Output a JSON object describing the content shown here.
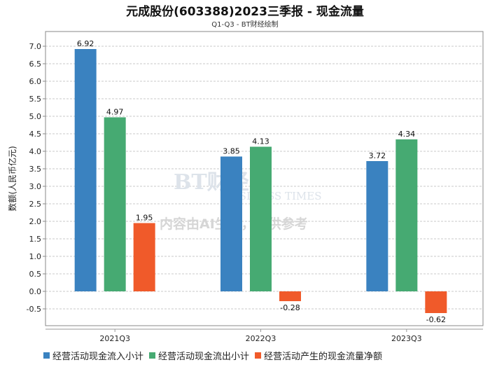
{
  "chart_data": {
    "type": "bar",
    "title": "元成股份(603388)2023三季报 - 现金流量",
    "subtitle": "Q1-Q3 - BT财经绘制",
    "xlabel": "",
    "ylabel": "数额(人民币亿元)",
    "categories": [
      "2021Q3",
      "2022Q3",
      "2023Q3"
    ],
    "series": [
      {
        "name": "经营活动现金流入小计",
        "color": "#3a82c0",
        "values": [
          6.92,
          3.85,
          3.72
        ],
        "labels": [
          "6.92",
          "3.85",
          "3.72"
        ]
      },
      {
        "name": "经营活动现金流出小计",
        "color": "#46aa72",
        "values": [
          4.97,
          4.13,
          4.34
        ],
        "labels": [
          "4.97",
          "4.13",
          "4.34"
        ]
      },
      {
        "name": "经营活动产生的现金流量净额",
        "color": "#f05a2a",
        "values": [
          1.95,
          -0.28,
          -0.62
        ],
        "labels": [
          "1.95",
          "-0.28",
          "-0.62"
        ]
      }
    ],
    "ylim": [
      -0.98,
      7.42
    ],
    "yticks": [
      "-0.5",
      "0.0",
      "0.5",
      "1.0",
      "1.5",
      "2.0",
      "2.5",
      "3.0",
      "3.5",
      "4.0",
      "4.5",
      "5.0",
      "5.5",
      "6.0",
      "6.5",
      "7.0"
    ],
    "grid": true,
    "legend_position": "bottom"
  },
  "watermark": {
    "logo": "BT财经",
    "logo_sub": "BUSINESS TIMES",
    "notice": "内容由AI生成，仅供参考"
  }
}
